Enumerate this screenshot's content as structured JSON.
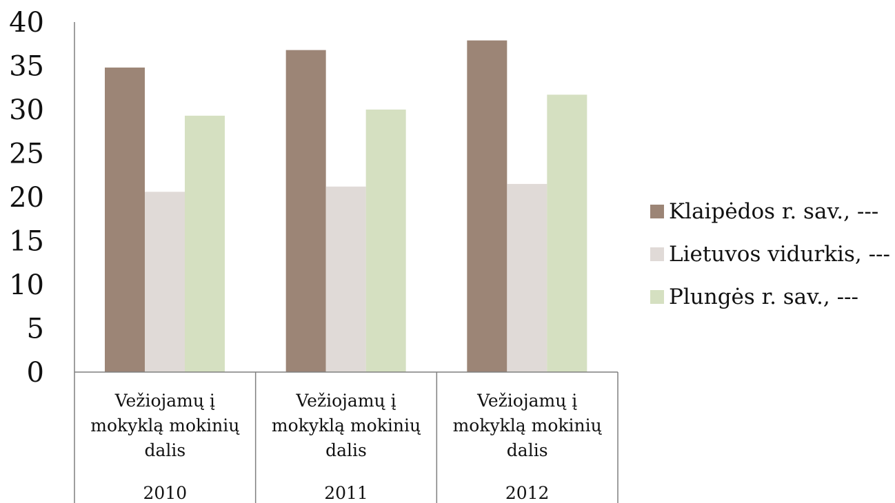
{
  "chart_data": {
    "type": "bar",
    "title": "",
    "xlabel": "",
    "ylabel": "",
    "ylim": [
      0,
      40
    ],
    "yticks": [
      0,
      5,
      10,
      15,
      20,
      25,
      30,
      35,
      40
    ],
    "categories": [
      {
        "label_lines": [
          "Vežiojamų į",
          "mokyklą mokinių",
          "dalis"
        ],
        "year": "2010"
      },
      {
        "label_lines": [
          "Vežiojamų į",
          "mokyklą mokinių",
          "dalis"
        ],
        "year": "2011"
      },
      {
        "label_lines": [
          "Vežiojamų į",
          "mokyklą mokinių",
          "dalis"
        ],
        "year": "2012"
      }
    ],
    "series": [
      {
        "name": "Klaipėdos r. sav., ---",
        "color": "#9c8576",
        "values": [
          34.8,
          36.8,
          37.9
        ]
      },
      {
        "name": "Lietuvos vidurkis, ---",
        "color": "#e0dad7",
        "values": [
          20.6,
          21.2,
          21.5
        ]
      },
      {
        "name": "Plungės r. sav., ---",
        "color": "#d5e0c1",
        "values": [
          29.3,
          30.0,
          31.7
        ]
      }
    ],
    "grid": false,
    "legend_position": "right"
  }
}
